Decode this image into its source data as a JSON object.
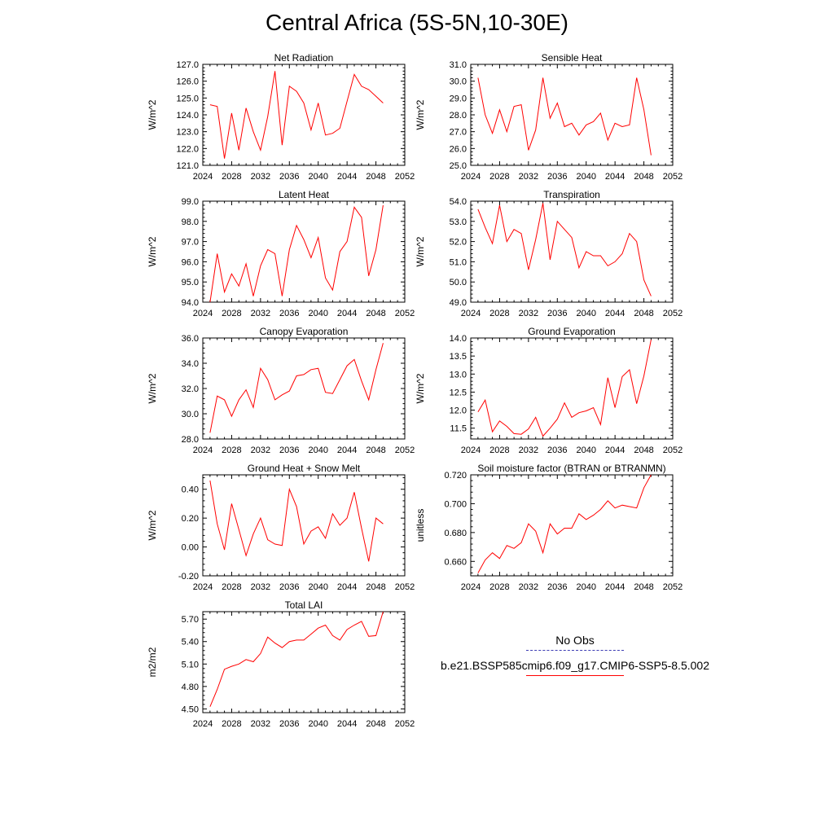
{
  "page_title": "Central Africa (5S-5N,10-30E)",
  "colors": {
    "model": "#ff0000",
    "obs": "#3c3cb4",
    "axis": "#000000"
  },
  "legend": {
    "entries": [
      {
        "label": "No Obs",
        "style": "dashed",
        "color": "#3c3cb4"
      },
      {
        "label": "b.e21.BSSP585cmip6.f09_g17.CMIP6-SSP5-8.5.002",
        "style": "solid",
        "color": "#ff0000"
      }
    ]
  },
  "chart_data": [
    {
      "type": "line",
      "title": "Net Radiation",
      "xlabel": "",
      "ylabel": "W/m^2",
      "xlim": [
        2024,
        2052
      ],
      "ylim": [
        121.0,
        127.0
      ],
      "xticks": [
        "2024",
        "2028",
        "2032",
        "2036",
        "2040",
        "2044",
        "2048",
        "2052"
      ],
      "yticks": [
        "121.0",
        "122.0",
        "123.0",
        "124.0",
        "125.0",
        "126.0",
        "127.0"
      ],
      "x": [
        2025,
        2026,
        2027,
        2028,
        2029,
        2030,
        2031,
        2032,
        2033,
        2034,
        2035,
        2036,
        2037,
        2038,
        2039,
        2040,
        2041,
        2042,
        2043,
        2044,
        2045,
        2046,
        2047,
        2048,
        2049
      ],
      "values": [
        124.6,
        124.5,
        121.4,
        124.1,
        121.9,
        124.4,
        123.0,
        121.9,
        123.9,
        126.6,
        122.2,
        125.7,
        125.4,
        124.7,
        123.1,
        124.7,
        122.8,
        122.9,
        123.2,
        124.8,
        126.4,
        125.7,
        125.5,
        125.1,
        124.7
      ]
    },
    {
      "type": "line",
      "title": "Sensible Heat",
      "xlabel": "",
      "ylabel": "W/m^2",
      "xlim": [
        2024,
        2052
      ],
      "ylim": [
        25.0,
        31.0
      ],
      "xticks": [
        "2024",
        "2028",
        "2032",
        "2036",
        "2040",
        "2044",
        "2048",
        "2052"
      ],
      "yticks": [
        "25.0",
        "26.0",
        "27.0",
        "28.0",
        "29.0",
        "30.0",
        "31.0"
      ],
      "x": [
        2025,
        2026,
        2027,
        2028,
        2029,
        2030,
        2031,
        2032,
        2033,
        2034,
        2035,
        2036,
        2037,
        2038,
        2039,
        2040,
        2041,
        2042,
        2043,
        2044,
        2045,
        2046,
        2047,
        2048,
        2049
      ],
      "values": [
        30.2,
        28.0,
        26.9,
        28.3,
        27.0,
        28.5,
        28.6,
        25.9,
        27.1,
        30.2,
        27.8,
        28.7,
        27.3,
        27.5,
        26.8,
        27.4,
        27.6,
        28.1,
        26.5,
        27.5,
        27.3,
        27.4,
        30.2,
        28.3,
        25.6
      ]
    },
    {
      "type": "line",
      "title": "Latent Heat",
      "xlabel": "",
      "ylabel": "W/m^2",
      "xlim": [
        2024,
        2052
      ],
      "ylim": [
        94.0,
        99.0
      ],
      "xticks": [
        "2024",
        "2028",
        "2032",
        "2036",
        "2040",
        "2044",
        "2048",
        "2052"
      ],
      "yticks": [
        "94.0",
        "95.0",
        "96.0",
        "97.0",
        "98.0",
        "99.0"
      ],
      "x": [
        2025,
        2026,
        2027,
        2028,
        2029,
        2030,
        2031,
        2032,
        2033,
        2034,
        2035,
        2036,
        2037,
        2038,
        2039,
        2040,
        2041,
        2042,
        2043,
        2044,
        2045,
        2046,
        2047,
        2048,
        2049
      ],
      "values": [
        94.0,
        96.4,
        94.5,
        95.4,
        94.8,
        95.9,
        94.3,
        95.8,
        96.6,
        96.4,
        94.3,
        96.6,
        97.8,
        97.1,
        96.2,
        97.2,
        95.2,
        94.6,
        96.5,
        97.0,
        98.7,
        98.2,
        95.3,
        96.6,
        98.8
      ]
    },
    {
      "type": "line",
      "title": "Transpiration",
      "xlabel": "",
      "ylabel": "W/m^2",
      "xlim": [
        2024,
        2052
      ],
      "ylim": [
        49.0,
        54.0
      ],
      "xticks": [
        "2024",
        "2028",
        "2032",
        "2036",
        "2040",
        "2044",
        "2048",
        "2052"
      ],
      "yticks": [
        "49.0",
        "50.0",
        "51.0",
        "52.0",
        "53.0",
        "54.0"
      ],
      "x": [
        2025,
        2026,
        2027,
        2028,
        2029,
        2030,
        2031,
        2032,
        2033,
        2034,
        2035,
        2036,
        2037,
        2038,
        2039,
        2040,
        2041,
        2042,
        2043,
        2044,
        2045,
        2046,
        2047,
        2048,
        2049
      ],
      "values": [
        53.6,
        52.7,
        51.9,
        53.8,
        52.0,
        52.6,
        52.4,
        50.6,
        52.1,
        53.9,
        51.1,
        53.0,
        52.6,
        52.2,
        50.7,
        51.5,
        51.3,
        51.3,
        50.8,
        51.0,
        51.4,
        52.4,
        52.0,
        50.1,
        49.3
      ]
    },
    {
      "type": "line",
      "title": "Canopy Evaporation",
      "xlabel": "",
      "ylabel": "W/m^2",
      "xlim": [
        2024,
        2052
      ],
      "ylim": [
        28.0,
        36.0
      ],
      "xticks": [
        "2024",
        "2028",
        "2032",
        "2036",
        "2040",
        "2044",
        "2048",
        "2052"
      ],
      "yticks": [
        "28.0",
        "30.0",
        "32.0",
        "34.0",
        "36.0"
      ],
      "x": [
        2025,
        2026,
        2027,
        2028,
        2029,
        2030,
        2031,
        2032,
        2033,
        2034,
        2035,
        2036,
        2037,
        2038,
        2039,
        2040,
        2041,
        2042,
        2043,
        2044,
        2045,
        2046,
        2047,
        2048,
        2049
      ],
      "values": [
        28.5,
        31.4,
        31.1,
        29.8,
        31.1,
        31.9,
        30.5,
        33.6,
        32.7,
        31.1,
        31.5,
        31.8,
        33.0,
        33.1,
        33.5,
        33.6,
        31.7,
        31.6,
        32.7,
        33.8,
        34.3,
        32.6,
        31.1,
        33.5,
        35.6
      ]
    },
    {
      "type": "line",
      "title": "Ground Evaporation",
      "xlabel": "",
      "ylabel": "W/m^2",
      "xlim": [
        2024,
        2052
      ],
      "ylim": [
        11.2,
        14.0
      ],
      "xticks": [
        "2024",
        "2028",
        "2032",
        "2036",
        "2040",
        "2044",
        "2048",
        "2052"
      ],
      "yticks": [
        "11.5",
        "12.0",
        "12.5",
        "13.0",
        "13.5",
        "14.0"
      ],
      "x": [
        2025,
        2026,
        2027,
        2028,
        2029,
        2030,
        2031,
        2032,
        2033,
        2034,
        2035,
        2036,
        2037,
        2038,
        2039,
        2040,
        2041,
        2042,
        2043,
        2044,
        2045,
        2046,
        2047,
        2048,
        2049
      ],
      "values": [
        11.95,
        12.28,
        11.4,
        11.7,
        11.55,
        11.35,
        11.33,
        11.48,
        11.8,
        11.28,
        11.5,
        11.75,
        12.2,
        11.8,
        11.93,
        11.98,
        12.07,
        11.6,
        12.9,
        12.07,
        12.93,
        13.12,
        12.18,
        12.95,
        13.95
      ]
    },
    {
      "type": "line",
      "title": "Ground Heat + Snow Melt",
      "xlabel": "",
      "ylabel": "W/m^2",
      "xlim": [
        2024,
        2052
      ],
      "ylim": [
        -0.2,
        0.5
      ],
      "xticks": [
        "2024",
        "2028",
        "2032",
        "2036",
        "2040",
        "2044",
        "2048",
        "2052"
      ],
      "yticks": [
        "-0.20",
        "0.00",
        "0.20",
        "0.40"
      ],
      "x": [
        2025,
        2026,
        2027,
        2028,
        2029,
        2030,
        2031,
        2032,
        2033,
        2034,
        2035,
        2036,
        2037,
        2038,
        2039,
        2040,
        2041,
        2042,
        2043,
        2044,
        2045,
        2046,
        2047,
        2048,
        2049
      ],
      "values": [
        0.46,
        0.16,
        -0.02,
        0.3,
        0.12,
        -0.06,
        0.09,
        0.2,
        0.05,
        0.02,
        0.01,
        0.4,
        0.28,
        0.02,
        0.11,
        0.14,
        0.06,
        0.23,
        0.15,
        0.2,
        0.38,
        0.13,
        -0.1,
        0.2,
        0.16
      ]
    },
    {
      "type": "line",
      "title": "Soil moisture factor (BTRAN or BTRANMN)",
      "xlabel": "",
      "ylabel": "unitless",
      "xlim": [
        2024,
        2052
      ],
      "ylim": [
        0.65,
        0.72
      ],
      "xticks": [
        "2024",
        "2028",
        "2032",
        "2036",
        "2040",
        "2044",
        "2048",
        "2052"
      ],
      "yticks": [
        "0.660",
        "0.680",
        "0.700",
        "0.720"
      ],
      "x": [
        2025,
        2026,
        2027,
        2028,
        2029,
        2030,
        2031,
        2032,
        2033,
        2034,
        2035,
        2036,
        2037,
        2038,
        2039,
        2040,
        2041,
        2042,
        2043,
        2044,
        2045,
        2046,
        2047,
        2048,
        2049
      ],
      "values": [
        0.652,
        0.661,
        0.666,
        0.662,
        0.671,
        0.669,
        0.673,
        0.686,
        0.681,
        0.666,
        0.686,
        0.679,
        0.683,
        0.683,
        0.693,
        0.689,
        0.692,
        0.696,
        0.702,
        0.697,
        0.699,
        0.698,
        0.697,
        0.711,
        0.72
      ]
    },
    {
      "type": "line",
      "title": "Total LAI",
      "xlabel": "",
      "ylabel": "m2/m2",
      "xlim": [
        2024,
        2052
      ],
      "ylim": [
        4.45,
        5.8
      ],
      "xticks": [
        "2024",
        "2028",
        "2032",
        "2036",
        "2040",
        "2044",
        "2048",
        "2052"
      ],
      "yticks": [
        "4.50",
        "4.80",
        "5.10",
        "5.40",
        "5.70"
      ],
      "x": [
        2025,
        2026,
        2027,
        2028,
        2029,
        2030,
        2031,
        2032,
        2033,
        2034,
        2035,
        2036,
        2037,
        2038,
        2039,
        2040,
        2041,
        2042,
        2043,
        2044,
        2045,
        2046,
        2047,
        2048,
        2049
      ],
      "values": [
        4.53,
        4.76,
        5.03,
        5.07,
        5.1,
        5.16,
        5.13,
        5.24,
        5.46,
        5.38,
        5.32,
        5.4,
        5.42,
        5.42,
        5.5,
        5.58,
        5.62,
        5.48,
        5.42,
        5.56,
        5.62,
        5.67,
        5.47,
        5.48,
        5.8
      ]
    }
  ]
}
